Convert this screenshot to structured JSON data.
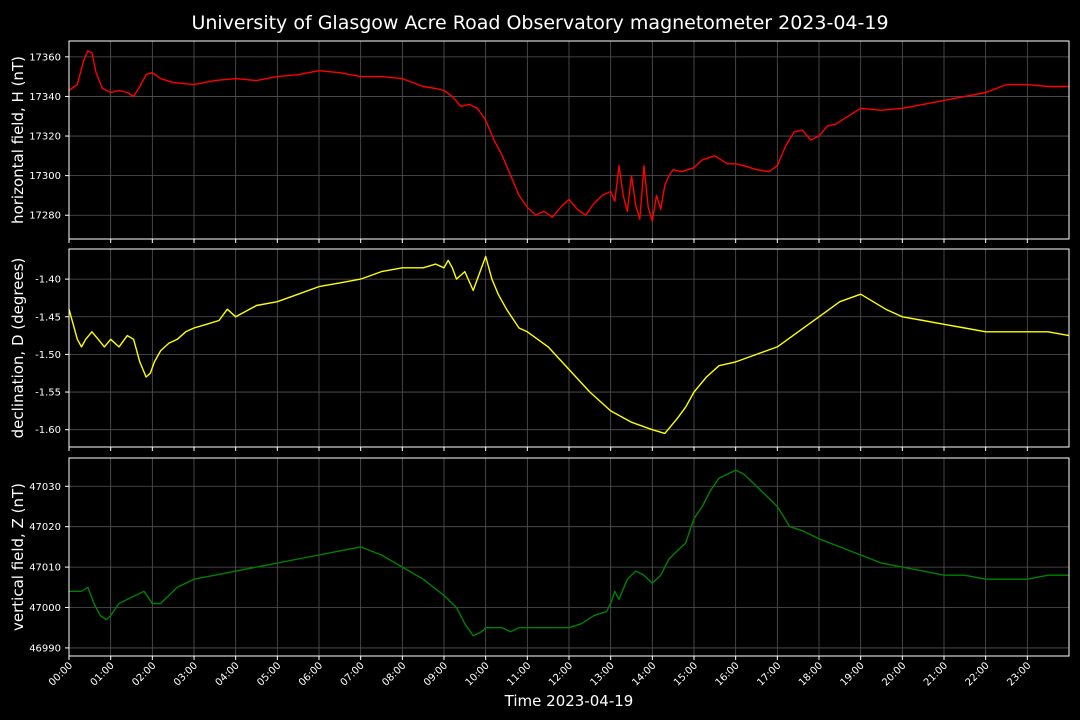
{
  "chart_data": {
    "type": "line",
    "title": "University of Glasgow Acre Road Observatory magnetometer 2023-04-19",
    "xlabel": "Time 2023-04-19",
    "x_range_hours": [
      0,
      24
    ],
    "x_ticks": [
      "00:00",
      "01:00",
      "02:00",
      "03:00",
      "04:00",
      "05:00",
      "06:00",
      "07:00",
      "08:00",
      "09:00",
      "10:00",
      "11:00",
      "12:00",
      "13:00",
      "14:00",
      "15:00",
      "16:00",
      "17:00",
      "18:00",
      "19:00",
      "20:00",
      "21:00",
      "22:00",
      "23:00"
    ],
    "grid": true,
    "background": "#000000",
    "panels": [
      {
        "ylabel": "horizontal field, H (nT)",
        "color": "#ff0000",
        "ylim": [
          17268,
          17368
        ],
        "yticks": [
          17280,
          17300,
          17320,
          17340,
          17360
        ],
        "series": {
          "x": [
            0,
            0.2,
            0.35,
            0.45,
            0.55,
            0.65,
            0.8,
            1.0,
            1.2,
            1.4,
            1.55,
            1.7,
            1.85,
            2.0,
            2.2,
            2.5,
            3.0,
            3.5,
            4.0,
            4.5,
            5.0,
            5.5,
            6.0,
            6.5,
            7.0,
            7.5,
            8.0,
            8.5,
            8.8,
            9.0,
            9.2,
            9.4,
            9.6,
            9.8,
            10.0,
            10.2,
            10.4,
            10.6,
            10.8,
            11.0,
            11.2,
            11.4,
            11.6,
            11.8,
            12.0,
            12.2,
            12.4,
            12.6,
            12.8,
            13.0,
            13.1,
            13.2,
            13.3,
            13.4,
            13.5,
            13.6,
            13.7,
            13.8,
            13.9,
            14.0,
            14.1,
            14.2,
            14.3,
            14.4,
            14.5,
            14.7,
            15.0,
            15.2,
            15.5,
            15.8,
            16.0,
            16.2,
            16.5,
            16.8,
            17.0,
            17.2,
            17.4,
            17.6,
            17.8,
            18.0,
            18.2,
            18.4,
            18.7,
            19.0,
            19.5,
            20.0,
            20.5,
            21.0,
            21.5,
            22.0,
            22.5,
            23.0,
            23.5,
            24.0
          ],
          "y": [
            17343,
            17346,
            17358,
            17363,
            17362,
            17352,
            17344,
            17342,
            17343,
            17342,
            17340,
            17345,
            17351,
            17352,
            17349,
            17347,
            17346,
            17348,
            17349,
            17348,
            17350,
            17351,
            17353,
            17352,
            17350,
            17350,
            17349,
            17345,
            17344,
            17343,
            17340,
            17335,
            17336,
            17334,
            17328,
            17318,
            17310,
            17300,
            17290,
            17284,
            17280,
            17282,
            17279,
            17284,
            17288,
            17283,
            17280,
            17286,
            17290,
            17292,
            17287,
            17305,
            17290,
            17282,
            17300,
            17285,
            17278,
            17305,
            17284,
            17277,
            17290,
            17283,
            17295,
            17300,
            17303,
            17302,
            17304,
            17308,
            17310,
            17306,
            17306,
            17305,
            17303,
            17302,
            17305,
            17315,
            17322,
            17323,
            17318,
            17320,
            17325,
            17326,
            17330,
            17334,
            17333,
            17334,
            17336,
            17338,
            17340,
            17342,
            17346,
            17346,
            17345,
            17345
          ]
        }
      },
      {
        "ylabel": "declination, D (degrees)",
        "color": "#ffff00",
        "ylim": [
          -1.623,
          -1.36
        ],
        "yticks": [
          -1.6,
          -1.55,
          -1.5,
          -1.45,
          -1.4
        ],
        "series": {
          "x": [
            0,
            0.1,
            0.2,
            0.3,
            0.4,
            0.55,
            0.7,
            0.85,
            1.0,
            1.2,
            1.4,
            1.55,
            1.7,
            1.85,
            1.95,
            2.05,
            2.2,
            2.4,
            2.6,
            2.8,
            3.0,
            3.3,
            3.6,
            3.8,
            4.0,
            4.5,
            5.0,
            5.5,
            6.0,
            6.5,
            7.0,
            7.5,
            8.0,
            8.5,
            8.8,
            9.0,
            9.1,
            9.2,
            9.3,
            9.5,
            9.7,
            9.9,
            10.0,
            10.15,
            10.3,
            10.5,
            10.8,
            11.0,
            11.5,
            12.0,
            12.5,
            13.0,
            13.5,
            14.0,
            14.3,
            14.6,
            14.8,
            15.0,
            15.3,
            15.6,
            16.0,
            16.5,
            17.0,
            17.5,
            18.0,
            18.5,
            19.0,
            19.3,
            19.6,
            20.0,
            20.5,
            21.0,
            21.5,
            22.0,
            22.5,
            23.0,
            23.5,
            24.0
          ],
          "y": [
            -1.44,
            -1.46,
            -1.48,
            -1.49,
            -1.48,
            -1.47,
            -1.48,
            -1.49,
            -1.48,
            -1.49,
            -1.475,
            -1.48,
            -1.51,
            -1.53,
            -1.525,
            -1.51,
            -1.495,
            -1.485,
            -1.48,
            -1.47,
            -1.465,
            -1.46,
            -1.455,
            -1.44,
            -1.45,
            -1.435,
            -1.43,
            -1.42,
            -1.41,
            -1.405,
            -1.4,
            -1.39,
            -1.385,
            -1.385,
            -1.38,
            -1.385,
            -1.375,
            -1.385,
            -1.4,
            -1.39,
            -1.415,
            -1.385,
            -1.37,
            -1.4,
            -1.42,
            -1.44,
            -1.465,
            -1.47,
            -1.49,
            -1.52,
            -1.55,
            -1.575,
            -1.59,
            -1.6,
            -1.605,
            -1.585,
            -1.57,
            -1.55,
            -1.53,
            -1.515,
            -1.51,
            -1.5,
            -1.49,
            -1.47,
            -1.45,
            -1.43,
            -1.42,
            -1.43,
            -1.44,
            -1.45,
            -1.455,
            -1.46,
            -1.465,
            -1.47,
            -1.47,
            -1.47,
            -1.47,
            -1.475
          ]
        }
      },
      {
        "ylabel": "vertical field, Z (nT)",
        "color": "#008000",
        "ylim": [
          46988,
          47037
        ],
        "yticks": [
          46990,
          47000,
          47010,
          47020,
          47030
        ],
        "series": {
          "x": [
            0,
            0.3,
            0.45,
            0.6,
            0.75,
            0.9,
            1.0,
            1.2,
            1.4,
            1.6,
            1.8,
            2.0,
            2.2,
            2.4,
            2.6,
            2.8,
            3.0,
            3.5,
            4.0,
            4.5,
            5.0,
            5.5,
            6.0,
            6.5,
            7.0,
            7.5,
            8.0,
            8.5,
            9.0,
            9.3,
            9.5,
            9.7,
            9.9,
            10.0,
            10.2,
            10.4,
            10.6,
            10.8,
            11.0,
            11.5,
            12.0,
            12.3,
            12.6,
            12.9,
            13.0,
            13.1,
            13.2,
            13.4,
            13.6,
            13.8,
            14.0,
            14.2,
            14.4,
            14.6,
            14.8,
            15.0,
            15.2,
            15.4,
            15.6,
            15.8,
            16.0,
            16.2,
            16.5,
            16.8,
            17.0,
            17.3,
            17.6,
            18.0,
            18.5,
            19.0,
            19.5,
            20.0,
            20.5,
            21.0,
            21.5,
            22.0,
            22.5,
            23.0,
            23.5,
            24.0
          ],
          "y": [
            47004,
            47004,
            47005,
            47001,
            46998,
            46997,
            46998,
            47001,
            47002,
            47003,
            47004,
            47001,
            47001,
            47003,
            47005,
            47006,
            47007,
            47008,
            47009,
            47010,
            47011,
            47012,
            47013,
            47014,
            47015,
            47013,
            47010,
            47007,
            47003,
            47000,
            46996,
            46993,
            46994,
            46995,
            46995,
            46995,
            46994,
            46995,
            46995,
            46995,
            46995,
            46996,
            46998,
            46999,
            47001,
            47004,
            47002,
            47007,
            47009,
            47008,
            47006,
            47008,
            47012,
            47014,
            47016,
            47022,
            47025,
            47029,
            47032,
            47033,
            47034,
            47033,
            47030,
            47027,
            47025,
            47020,
            47019,
            47017,
            47015,
            47013,
            47011,
            47010,
            47009,
            47008,
            47008,
            47007,
            47007,
            47007,
            47008,
            47008
          ]
        }
      }
    ]
  }
}
